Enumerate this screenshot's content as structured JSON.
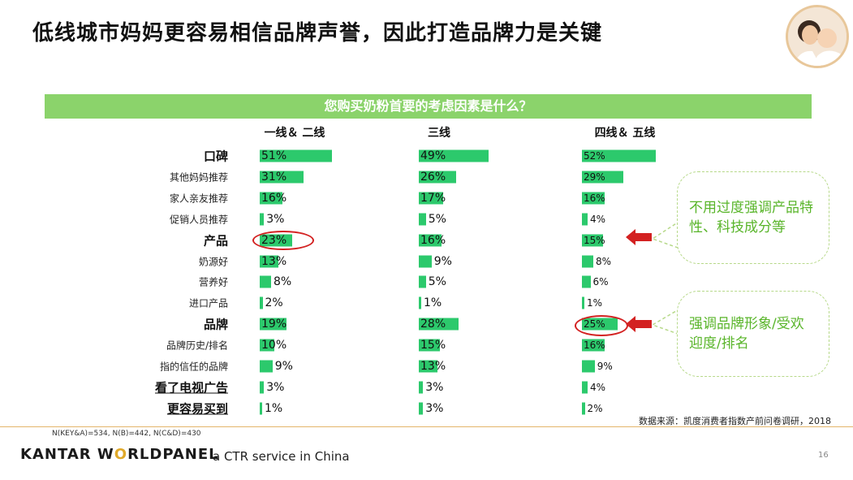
{
  "title": "低线城市妈妈更容易相信品牌声誉，因此打造品牌力是关键",
  "question": "您购买奶粉首要的考虑因素是什么？",
  "footer": {
    "source": "数据来源：凯度消费者指数产前问卷调研，2018",
    "sample_note": "N(KEY&A)=534, N(B)=442, N(C&D)=430",
    "brand_dark": "KANTAR W",
    "brand_accent": "O",
    "brand_rest": "RLDPANEL",
    "tagline": "a CTR service in China",
    "page_number": "16"
  },
  "callouts": [
    {
      "text": "不用过度强调产品特性、科技成分等"
    },
    {
      "text": "强调品牌形象/受欢迎度/排名"
    }
  ],
  "colors": {
    "bar": "#2cc96c",
    "header_bar": "#8bd36b",
    "highlight": "#d32121",
    "callout_text": "#59b52a"
  },
  "chart_data": {
    "type": "bar",
    "orientation": "horizontal",
    "value_unit": "%",
    "categories": [
      "口碑",
      "其他妈妈推荐",
      "家人亲友推荐",
      "促销人员推荐",
      "产品",
      "奶源好",
      "营养好",
      "进口产品",
      "品牌",
      "品牌历史/排名",
      "指的信任的品牌",
      "看了电视广告",
      "更容易买到"
    ],
    "main_categories": [
      "口碑",
      "产品",
      "品牌",
      "看了电视广告",
      "更容易买到"
    ],
    "series": [
      {
        "name": "一线＆ 二线",
        "values": [
          51,
          31,
          16,
          3,
          23,
          13,
          8,
          2,
          19,
          10,
          9,
          3,
          1
        ]
      },
      {
        "name": "三线",
        "values": [
          49,
          26,
          17,
          5,
          16,
          9,
          5,
          1,
          28,
          15,
          13,
          3,
          3
        ]
      },
      {
        "name": "四线＆ 五线",
        "values": [
          52,
          29,
          16,
          4,
          15,
          8,
          6,
          1,
          25,
          16,
          9,
          4,
          2
        ]
      }
    ],
    "highlighted": [
      {
        "series": "一线＆ 二线",
        "category": "产品"
      },
      {
        "series": "四线＆ 五线",
        "category": "品牌"
      }
    ],
    "grid": false,
    "legend": "none"
  }
}
